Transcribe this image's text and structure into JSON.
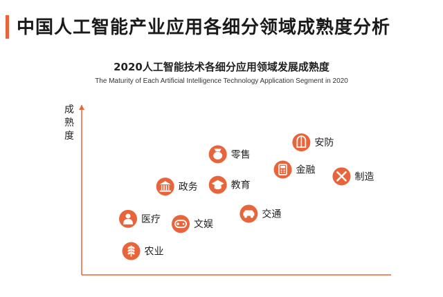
{
  "header": {
    "title": "中国人工智能产业应用各细分领域成熟度分析"
  },
  "chart_data": {
    "type": "scatter",
    "title": "2020人工智能技术各细分应用领域发展成熟度",
    "subtitle": "The Maturity of Each Artificial Intelligence Technology Application Segment in 2020",
    "xlabel": "",
    "ylabel": "成熟度",
    "xlim": [
      0,
      100
    ],
    "ylim": [
      0,
      100
    ],
    "grid": false,
    "points": [
      {
        "label": "安防",
        "x": 71,
        "y": 78,
        "icon": "window-icon"
      },
      {
        "label": "零售",
        "x": 44,
        "y": 71,
        "icon": "money-bag-icon"
      },
      {
        "label": "金融",
        "x": 65,
        "y": 62,
        "icon": "calculator-icon"
      },
      {
        "label": "制造",
        "x": 84,
        "y": 58,
        "icon": "tools-icon"
      },
      {
        "label": "政务",
        "x": 27,
        "y": 52,
        "icon": "government-building-icon"
      },
      {
        "label": "教育",
        "x": 44,
        "y": 53,
        "icon": "graduation-cap-icon"
      },
      {
        "label": "交通",
        "x": 54,
        "y": 36,
        "icon": "car-icon"
      },
      {
        "label": "医疗",
        "x": 15,
        "y": 33,
        "icon": "doctor-icon"
      },
      {
        "label": "文娱",
        "x": 32,
        "y": 30,
        "icon": "gamepad-icon"
      },
      {
        "label": "农业",
        "x": 16,
        "y": 14,
        "icon": "wheat-icon"
      }
    ],
    "colors": {
      "marker": "#e8643a",
      "axis": "#e8643a"
    }
  }
}
